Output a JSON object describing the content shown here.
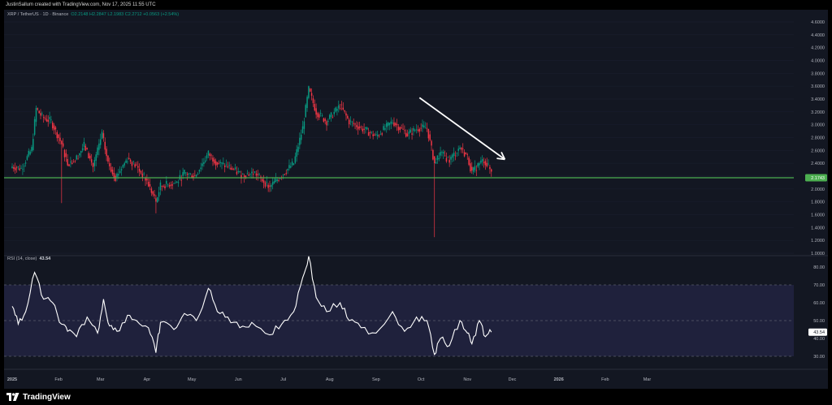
{
  "attribution": "JustinSallum created with TradingView.com, Nov 17, 2025 11:55 UTC",
  "symbol": {
    "title": "XRP / TetherUS · 1D · Binance",
    "open": "O2.2148",
    "high": "H2.2847",
    "low": "L2.1983",
    "close": "C2.2712",
    "change": "+0.0563 (+2.54%)"
  },
  "rsi_label": "RSI (14, close)",
  "rsi_value": "43.54",
  "current_price_label": "2.1743",
  "logo_text": "TradingView",
  "colors": {
    "background": "#131722",
    "up": "#089981",
    "down": "#f23645",
    "support_line": "#4caf50",
    "rsi_band": "#2a2a52",
    "rsi_line": "#ffffff",
    "arrow": "#ffffff"
  },
  "chart_data": [
    {
      "type": "candlestick",
      "title": "XRP / TetherUS · 1D · Binance",
      "y_ticks": [
        "4.6000",
        "4.4000",
        "4.2000",
        "4.0000",
        "3.8000",
        "3.6000",
        "3.4000",
        "3.2000",
        "3.0000",
        "2.8000",
        "2.6000",
        "2.4000",
        "2.2000",
        "2.0000",
        "1.8000",
        "1.6000",
        "1.4000",
        "1.2000",
        "1.0000"
      ],
      "ylim": [
        1.0,
        4.6
      ],
      "x_ticks": [
        "2025",
        "Feb",
        "Mar",
        "Apr",
        "May",
        "Jun",
        "Jul",
        "Aug",
        "Sep",
        "Oct",
        "Nov",
        "Dec",
        "2026",
        "Feb",
        "Mar"
      ],
      "support_level": 2.1743,
      "downtrend_arrow": {
        "from": [
          "2025-09-30",
          3.42
        ],
        "to": [
          "2025-11-26",
          2.46
        ]
      },
      "daily_close_path": [
        {
          "date": "2025-01-01",
          "value": 2.35
        },
        {
          "date": "2025-01-07",
          "value": 2.32
        },
        {
          "date": "2025-01-14",
          "value": 2.62
        },
        {
          "date": "2025-01-17",
          "value": 3.25
        },
        {
          "date": "2025-01-21",
          "value": 3.12
        },
        {
          "date": "2025-01-27",
          "value": 3.05
        },
        {
          "date": "2025-02-03",
          "value": 2.7
        },
        {
          "date": "2025-02-07",
          "value": 2.4
        },
        {
          "date": "2025-02-12",
          "value": 2.45
        },
        {
          "date": "2025-02-18",
          "value": 2.68
        },
        {
          "date": "2025-02-24",
          "value": 2.35
        },
        {
          "date": "2025-03-02",
          "value": 2.85
        },
        {
          "date": "2025-03-06",
          "value": 2.4
        },
        {
          "date": "2025-03-11",
          "value": 2.18
        },
        {
          "date": "2025-03-19",
          "value": 2.48
        },
        {
          "date": "2025-03-25",
          "value": 2.35
        },
        {
          "date": "2025-04-01",
          "value": 2.12
        },
        {
          "date": "2025-04-07",
          "value": 1.8
        },
        {
          "date": "2025-04-10",
          "value": 2.05
        },
        {
          "date": "2025-04-21",
          "value": 2.1
        },
        {
          "date": "2025-04-26",
          "value": 2.25
        },
        {
          "date": "2025-05-03",
          "value": 2.2
        },
        {
          "date": "2025-05-12",
          "value": 2.55
        },
        {
          "date": "2025-05-18",
          "value": 2.4
        },
        {
          "date": "2025-05-25",
          "value": 2.35
        },
        {
          "date": "2025-06-03",
          "value": 2.22
        },
        {
          "date": "2025-06-12",
          "value": 2.25
        },
        {
          "date": "2025-06-22",
          "value": 2.03
        },
        {
          "date": "2025-06-30",
          "value": 2.22
        },
        {
          "date": "2025-07-08",
          "value": 2.4
        },
        {
          "date": "2025-07-14",
          "value": 2.95
        },
        {
          "date": "2025-07-18",
          "value": 3.55
        },
        {
          "date": "2025-07-23",
          "value": 3.2
        },
        {
          "date": "2025-07-30",
          "value": 3.05
        },
        {
          "date": "2025-08-08",
          "value": 3.3
        },
        {
          "date": "2025-08-14",
          "value": 3.05
        },
        {
          "date": "2025-08-22",
          "value": 2.95
        },
        {
          "date": "2025-09-01",
          "value": 2.82
        },
        {
          "date": "2025-09-12",
          "value": 3.05
        },
        {
          "date": "2025-09-22",
          "value": 2.85
        },
        {
          "date": "2025-09-29",
          "value": 2.95
        },
        {
          "date": "2025-10-05",
          "value": 2.95
        },
        {
          "date": "2025-10-10",
          "value": 2.4
        },
        {
          "date": "2025-10-14",
          "value": 2.55
        },
        {
          "date": "2025-10-20",
          "value": 2.45
        },
        {
          "date": "2025-10-27",
          "value": 2.65
        },
        {
          "date": "2025-11-01",
          "value": 2.5
        },
        {
          "date": "2025-11-04",
          "value": 2.25
        },
        {
          "date": "2025-11-09",
          "value": 2.4
        },
        {
          "date": "2025-11-12",
          "value": 2.45
        },
        {
          "date": "2025-11-17",
          "value": 2.27
        }
      ]
    },
    {
      "type": "line",
      "title": "RSI (14, close)",
      "y_ticks": [
        "80.00",
        "70.00",
        "60.00",
        "50.00",
        "40.00",
        "30.00"
      ],
      "ylim": [
        25,
        85
      ],
      "bands": [
        30,
        50,
        70
      ],
      "series": [
        {
          "values": [
            {
              "date": "2025-01-01",
              "value": 58
            },
            {
              "date": "2025-01-05",
              "value": 48
            },
            {
              "date": "2025-01-10",
              "value": 55
            },
            {
              "date": "2025-01-16",
              "value": 77
            },
            {
              "date": "2025-01-22",
              "value": 62
            },
            {
              "date": "2025-01-28",
              "value": 60
            },
            {
              "date": "2025-02-03",
              "value": 48
            },
            {
              "date": "2025-02-07",
              "value": 44
            },
            {
              "date": "2025-02-13",
              "value": 41
            },
            {
              "date": "2025-02-20",
              "value": 52
            },
            {
              "date": "2025-02-27",
              "value": 43
            },
            {
              "date": "2025-03-03",
              "value": 62
            },
            {
              "date": "2025-03-07",
              "value": 47
            },
            {
              "date": "2025-03-12",
              "value": 44
            },
            {
              "date": "2025-03-19",
              "value": 53
            },
            {
              "date": "2025-03-25",
              "value": 50
            },
            {
              "date": "2025-04-02",
              "value": 46
            },
            {
              "date": "2025-04-07",
              "value": 32
            },
            {
              "date": "2025-04-10",
              "value": 49
            },
            {
              "date": "2025-04-19",
              "value": 45
            },
            {
              "date": "2025-04-26",
              "value": 54
            },
            {
              "date": "2025-05-04",
              "value": 50
            },
            {
              "date": "2025-05-12",
              "value": 68
            },
            {
              "date": "2025-05-18",
              "value": 55
            },
            {
              "date": "2025-05-25",
              "value": 52
            },
            {
              "date": "2025-06-02",
              "value": 46
            },
            {
              "date": "2025-06-10",
              "value": 49
            },
            {
              "date": "2025-06-22",
              "value": 42
            },
            {
              "date": "2025-06-30",
              "value": 48
            },
            {
              "date": "2025-07-08",
              "value": 55
            },
            {
              "date": "2025-07-14",
              "value": 74
            },
            {
              "date": "2025-07-18",
              "value": 86
            },
            {
              "date": "2025-07-23",
              "value": 63
            },
            {
              "date": "2025-07-30",
              "value": 55
            },
            {
              "date": "2025-08-08",
              "value": 60
            },
            {
              "date": "2025-08-14",
              "value": 50
            },
            {
              "date": "2025-08-22",
              "value": 46
            },
            {
              "date": "2025-09-01",
              "value": 43
            },
            {
              "date": "2025-09-12",
              "value": 55
            },
            {
              "date": "2025-09-20",
              "value": 44
            },
            {
              "date": "2025-09-28",
              "value": 52
            },
            {
              "date": "2025-10-05",
              "value": 50
            },
            {
              "date": "2025-10-10",
              "value": 31
            },
            {
              "date": "2025-10-14",
              "value": 40
            },
            {
              "date": "2025-10-20",
              "value": 36
            },
            {
              "date": "2025-10-27",
              "value": 50
            },
            {
              "date": "2025-11-01",
              "value": 43
            },
            {
              "date": "2025-11-04",
              "value": 37
            },
            {
              "date": "2025-11-09",
              "value": 50
            },
            {
              "date": "2025-11-13",
              "value": 41
            },
            {
              "date": "2025-11-17",
              "value": 43.54
            }
          ]
        }
      ]
    }
  ]
}
